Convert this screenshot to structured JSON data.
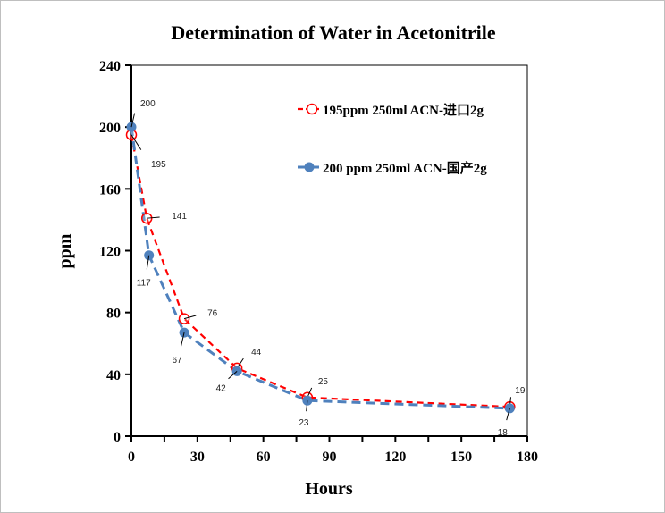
{
  "chart_data": {
    "type": "line",
    "title": "Determination of Water in Acetonitrile",
    "xlabel": "Hours",
    "ylabel": "ppm",
    "xlim": [
      0,
      180
    ],
    "ylim": [
      0,
      240
    ],
    "xticks": [
      0,
      30,
      60,
      90,
      120,
      150,
      180
    ],
    "yticks": [
      0,
      40,
      80,
      120,
      160,
      200,
      240
    ],
    "grid": false,
    "legend_position": "top-right",
    "series": [
      {
        "name": "195ppm  250ml ACN-进口2g",
        "color": "#ff0000",
        "marker": "open-circle",
        "line": "dashed",
        "x": [
          0,
          7,
          24,
          48,
          80,
          172
        ],
        "y": [
          195,
          141,
          76,
          44,
          25,
          19
        ]
      },
      {
        "name": "200 ppm  250ml ACN-国产2g",
        "color": "#4f81bd",
        "marker": "filled-circle",
        "line": "dashed",
        "x": [
          0,
          8,
          24,
          48,
          80,
          172
        ],
        "y": [
          200,
          117,
          67,
          42,
          23,
          18
        ]
      }
    ]
  }
}
